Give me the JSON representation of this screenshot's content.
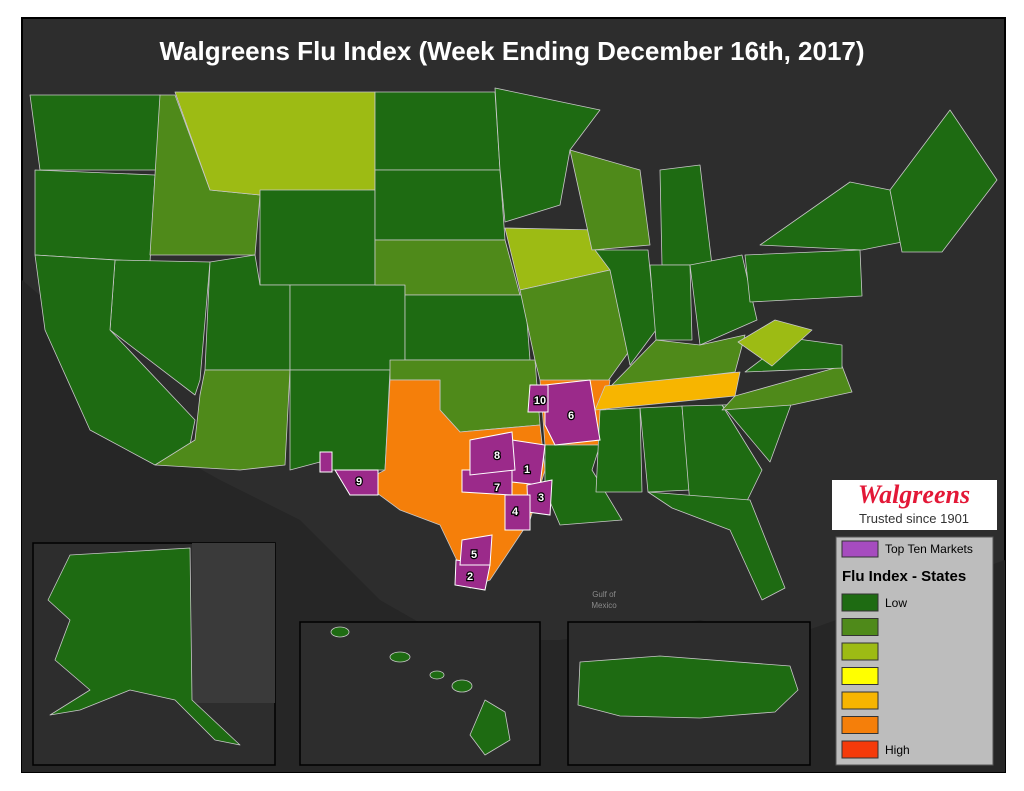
{
  "title": "Walgreens Flu Index (Week Ending December 16th, 2017)",
  "water_labels": [
    "Gulf of",
    "Mexico"
  ],
  "markets": [
    "1",
    "2",
    "3",
    "4",
    "5",
    "6",
    "7",
    "8",
    "9",
    "10"
  ],
  "logo": {
    "brand": "Walgreens",
    "tagline": "Trusted since 1901"
  },
  "legend": {
    "markets_label": "Top Ten Markets",
    "markets_color": "#a64cbf",
    "title": "Flu Index - States",
    "scale_colors": [
      "#1e6b12",
      "#4f8a1a",
      "#9dbb14",
      "#ffff00",
      "#f7b500",
      "#f57f0a",
      "#f53a0a"
    ],
    "low_label": "Low",
    "high_label": "High"
  }
}
